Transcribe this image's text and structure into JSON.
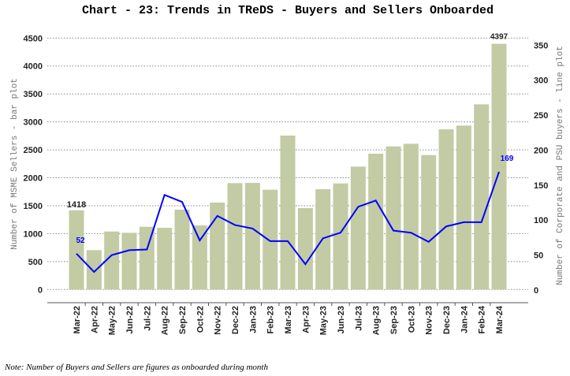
{
  "chart_data": {
    "type": "bar+line",
    "title": "Chart - 23: Trends in TReDS - Buyers and Sellers Onboarded",
    "ylabel_left": "Number of MSME Sellers - bar plot",
    "ylabel_right": "Number of Corporate and PSU buyers - line plot",
    "categories": [
      "Mar-22",
      "Apr-22",
      "May-22",
      "Jun-22",
      "Jul-22",
      "Aug-22",
      "Sep-22",
      "Oct-22",
      "Nov-22",
      "Dec-22",
      "Jan-23",
      "Feb-23",
      "Mar-23",
      "Apr-23",
      "May-23",
      "Jun-23",
      "Jul-23",
      "Aug-23",
      "Sep-23",
      "Oct-23",
      "Nov-23",
      "Dec-23",
      "Jan-24",
      "Feb-24",
      "Mar-24"
    ],
    "series": [
      {
        "type": "bar",
        "axis": "left",
        "color": "#c2cba3",
        "values": [
          1418,
          705,
          1038,
          1015,
          1123,
          1104,
          1429,
          1147,
          1556,
          1904,
          1908,
          1786,
          2755,
          1457,
          1795,
          1899,
          2200,
          2430,
          2561,
          2609,
          2406,
          2867,
          2934,
          3314,
          4397
        ]
      },
      {
        "type": "line",
        "axis": "right",
        "color": "#0000ff",
        "values": [
          52,
          26,
          50,
          57,
          58,
          136,
          126,
          71,
          106,
          93,
          88,
          70,
          70,
          37,
          74,
          82,
          119,
          128,
          85,
          82,
          69,
          91,
          97,
          97,
          169
        ]
      }
    ],
    "data_labels": {
      "bar_first": "1418",
      "bar_last": "4397",
      "line_first": "52",
      "line_last": "169"
    },
    "ylim_left": [
      0,
      4500
    ],
    "ylim_right": [
      0,
      350
    ],
    "yticks_left": [
      "0",
      "500",
      "1000",
      "1500",
      "2000",
      "2500",
      "3000",
      "3500",
      "4000",
      "4500"
    ],
    "yticks_right": [
      "0",
      "50",
      "100",
      "150",
      "200",
      "250",
      "300",
      "350"
    ],
    "grid": true,
    "note": "Note: Number of Buyers and Sellers are figures as onboarded during month"
  }
}
